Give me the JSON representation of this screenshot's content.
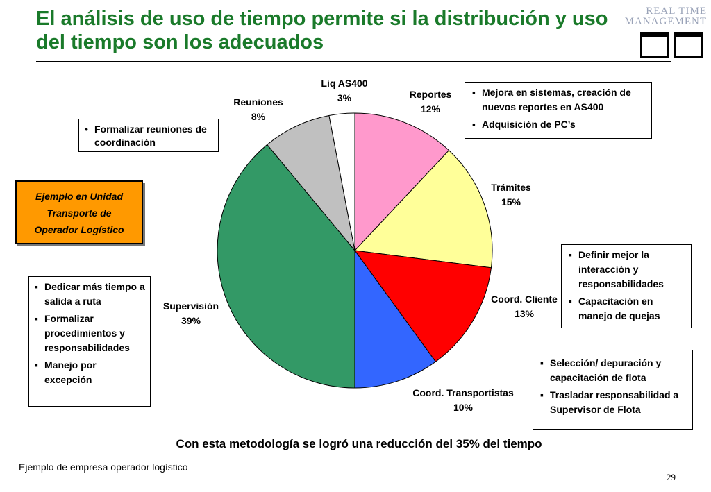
{
  "title": "El análisis de uso de tiempo permite si la distribución y uso del tiempo son los adecuados",
  "logo": {
    "line1": "REAL TIME",
    "line2": "MANAGEMENT"
  },
  "example_box": {
    "line1": "Ejemplo en Unidad",
    "line2": "Transporte de",
    "line3": "Operador Logístico"
  },
  "notes": {
    "reuniones": [
      "Formalizar reuniones de coordinación"
    ],
    "reportes": [
      "Mejora en sistemas, creación de nuevos reportes en AS400",
      "Adquisición de PC’s"
    ],
    "supervision": [
      "Dedicar más tiempo a salida a ruta",
      "Formalizar procedimientos y responsabilidades",
      "Manejo por excepción"
    ],
    "cliente": [
      "Definir mejor la interacción y responsabilidades",
      "Capacitación en manejo de quejas"
    ],
    "transportistas": [
      "Selección/ depuración y capacitación de flota",
      "Trasladar responsabilidad a Supervisor de Flota"
    ]
  },
  "chart_data": {
    "type": "pie",
    "title": "",
    "unit": "%",
    "slices": [
      {
        "label": "Reportes",
        "value": 12,
        "display": "12%",
        "color": "#ff99cc"
      },
      {
        "label": "Trámites",
        "value": 15,
        "display": "15%",
        "color": "#ffff99"
      },
      {
        "label": "Coord. Cliente",
        "value": 13,
        "display": "13%",
        "color": "#ff0000"
      },
      {
        "label": "Coord. Transportistas",
        "value": 10,
        "display": "10%",
        "color": "#3366ff"
      },
      {
        "label": "Supervisión",
        "value": 39,
        "display": "39%",
        "color": "#339966"
      },
      {
        "label": "Reuniones",
        "value": 8,
        "display": "8%",
        "color": "#c0c0c0"
      },
      {
        "label": "Liq AS400",
        "value": 3,
        "display": "3%",
        "color": "#ffffff"
      }
    ]
  },
  "conclusion": "Con esta metodología se logró una reducción del 35% del tiempo",
  "footer": "Ejemplo de empresa operador logístico",
  "page_number": "29"
}
